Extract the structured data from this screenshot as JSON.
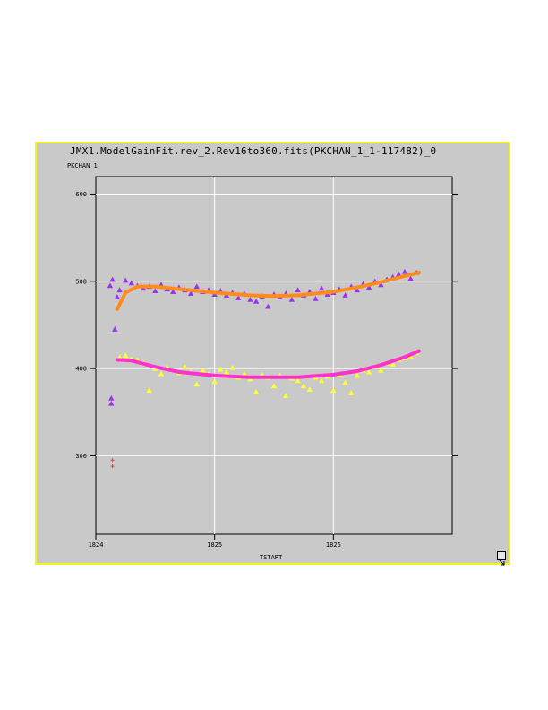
{
  "chart_data": {
    "type": "scatter",
    "title": "JMX1.ModelGainFit.rev_2.Rev16to360.fits(PKCHAN_1_1-117482)_0",
    "ylabel": "PKCHAN_1",
    "xlabel": "TSTART",
    "xlim": [
      1824,
      1827
    ],
    "ylim": [
      210,
      620
    ],
    "xticks": [
      1824,
      1825,
      1826
    ],
    "yticks": [
      300,
      400,
      500,
      600
    ],
    "grid": true,
    "colors": {
      "upper_points": "#9933ee",
      "upper_fit": "#ff8c1a",
      "lower_points": "#ffff33",
      "lower_fit": "#ff33cc",
      "outliers": "#ff3333",
      "frame": "#f2f21e",
      "background": "#c9c9c9"
    },
    "series": [
      {
        "kind": "points",
        "x": [
          1824.12,
          1824.14,
          1824.16,
          1824.18,
          1824.2,
          1824.25,
          1824.3,
          1824.35,
          1824.4,
          1824.45,
          1824.5,
          1824.55,
          1824.6,
          1824.65,
          1824.7,
          1824.75,
          1824.8,
          1824.85,
          1824.9,
          1824.95,
          1825.0,
          1825.05,
          1825.1,
          1825.15,
          1825.2,
          1825.25,
          1825.3,
          1825.35,
          1825.4,
          1825.45,
          1825.5,
          1825.55,
          1825.6,
          1825.65,
          1825.7,
          1825.75,
          1825.8,
          1825.85,
          1825.9,
          1825.95,
          1826.0,
          1826.05,
          1826.1,
          1826.15,
          1826.2,
          1826.25,
          1826.3,
          1826.35,
          1826.4,
          1826.45,
          1826.5,
          1826.55,
          1826.6,
          1826.65,
          1826.7
        ],
        "y": [
          495,
          502,
          445,
          482,
          490,
          501,
          498,
          495,
          492,
          494,
          489,
          496,
          491,
          488,
          493,
          490,
          486,
          494,
          488,
          490,
          485,
          489,
          484,
          487,
          481,
          486,
          479,
          477,
          483,
          471,
          485,
          482,
          486,
          479,
          490,
          484,
          488,
          480,
          492,
          485,
          487,
          491,
          484,
          494,
          490,
          497,
          493,
          500,
          496,
          502,
          505,
          508,
          511,
          503,
          510
        ]
      },
      {
        "kind": "fit",
        "x": [
          1824.18,
          1824.25,
          1824.35,
          1824.5,
          1824.7,
          1825.0,
          1825.3,
          1825.5,
          1825.7,
          1826.0,
          1826.2,
          1826.4,
          1826.6,
          1826.72
        ],
        "y": [
          468,
          487,
          494,
          494,
          491,
          487,
          484,
          483,
          484,
          488,
          493,
          499,
          506,
          510
        ]
      },
      {
        "kind": "points",
        "x": [
          1824.2,
          1824.25,
          1824.3,
          1824.35,
          1824.4,
          1824.45,
          1824.5,
          1824.55,
          1824.6,
          1824.65,
          1824.7,
          1824.75,
          1824.8,
          1824.85,
          1824.9,
          1824.95,
          1825.0,
          1825.05,
          1825.1,
          1825.15,
          1825.2,
          1825.25,
          1825.3,
          1825.35,
          1825.4,
          1825.45,
          1825.5,
          1825.55,
          1825.6,
          1825.65,
          1825.7,
          1825.75,
          1825.8,
          1825.85,
          1825.9,
          1825.95,
          1826.0,
          1826.05,
          1826.1,
          1826.15,
          1826.2,
          1826.25,
          1826.3,
          1826.35,
          1826.4,
          1826.45,
          1826.5,
          1826.55,
          1826.6,
          1826.65,
          1826.7
        ],
        "y": [
          413,
          415,
          411,
          410,
          406,
          375,
          400,
          394,
          401,
          398,
          395,
          402,
          396,
          382,
          398,
          394,
          385,
          399,
          396,
          401,
          390,
          394,
          388,
          373,
          393,
          390,
          380,
          392,
          369,
          389,
          386,
          380,
          376,
          390,
          386,
          391,
          375,
          393,
          384,
          372,
          392,
          398,
          396,
          402,
          398,
          406,
          405,
          410,
          412,
          414,
          418
        ]
      },
      {
        "kind": "fit",
        "x": [
          1824.18,
          1824.3,
          1824.5,
          1824.7,
          1825.0,
          1825.3,
          1825.5,
          1825.7,
          1826.0,
          1826.2,
          1826.4,
          1826.6,
          1826.72
        ],
        "y": [
          410,
          409,
          402,
          396,
          392,
          390,
          390,
          390,
          393,
          397,
          404,
          413,
          420
        ]
      },
      {
        "kind": "outliers",
        "x": [
          1824.13,
          1824.13,
          1824.14,
          1824.14
        ],
        "y": [
          366,
          360,
          295,
          288
        ]
      }
    ]
  }
}
